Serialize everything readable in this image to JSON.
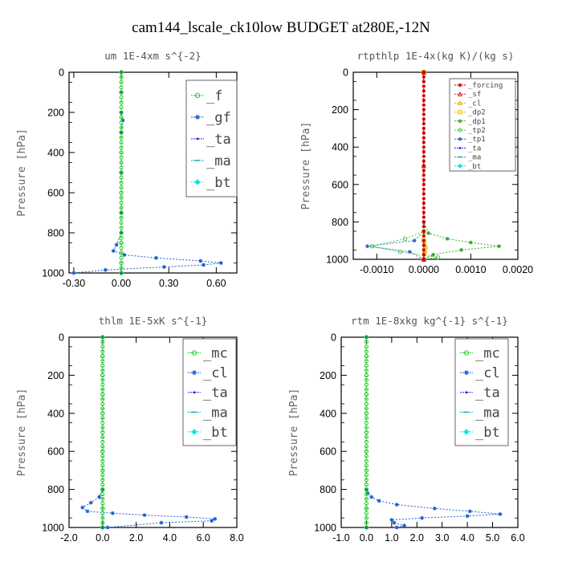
{
  "figure_title": "cam144_lscale_ck10low  BUDGET at280E,-12N",
  "chart_data": [
    {
      "type": "line",
      "title": "um   1E-4xm s^{-2}",
      "ylabel": "Pressure [hPa]",
      "xlim": [
        -0.33,
        0.73
      ],
      "ylim": [
        1000,
        0
      ],
      "xticks": [
        "-0.30",
        "0.00",
        "0.30",
        "0.60"
      ],
      "xtick_values": [
        -0.3,
        0.0,
        0.3,
        0.6
      ],
      "yticks": [
        "0",
        "200",
        "400",
        "600",
        "800",
        "1000"
      ],
      "legend_position": "top-right",
      "legend_size": "large",
      "series": [
        {
          "name": "_f",
          "color": "#22cc22",
          "marker": "circle",
          "points": [
            [
              0.0,
              0
            ],
            [
              0.0,
              100
            ],
            [
              0.0,
              200
            ],
            [
              0.0,
              300
            ],
            [
              0.0,
              400
            ],
            [
              0.0,
              500
            ],
            [
              0.0,
              600
            ],
            [
              0.0,
              700
            ],
            [
              0.0,
              800
            ],
            [
              0.0,
              850
            ],
            [
              0.0,
              900
            ],
            [
              0.0,
              950
            ],
            [
              0.0,
              1000
            ]
          ]
        },
        {
          "name": "_gf",
          "color": "#1a5fd0",
          "marker": "star",
          "points": [
            [
              0.0,
              0
            ],
            [
              0.0,
              100
            ],
            [
              0.0,
              200
            ],
            [
              0.01,
              240
            ],
            [
              0.0,
              300
            ],
            [
              0.0,
              500
            ],
            [
              0.0,
              700
            ],
            [
              0.0,
              800
            ],
            [
              -0.03,
              860
            ],
            [
              -0.05,
              890
            ],
            [
              0.02,
              910
            ],
            [
              0.22,
              925
            ],
            [
              0.5,
              940
            ],
            [
              0.63,
              950
            ],
            [
              0.52,
              960
            ],
            [
              0.27,
              970
            ],
            [
              -0.1,
              985
            ],
            [
              -0.3,
              1000
            ]
          ]
        },
        {
          "name": "_ta",
          "color": "#2222dd",
          "marker": "dot",
          "points": [
            [
              0.0,
              0
            ],
            [
              0.0,
              500
            ],
            [
              0.0,
              1000
            ]
          ]
        },
        {
          "name": "_ma",
          "color": "#00aaaa",
          "marker": "dash",
          "points": [
            [
              0.0,
              0
            ],
            [
              0.0,
              500
            ],
            [
              0.0,
              1000
            ]
          ]
        },
        {
          "name": "_bt",
          "color": "#00e6e6",
          "marker": "diamond",
          "points": [
            [
              0.0,
              0
            ],
            [
              0.0,
              500
            ],
            [
              0.0,
              1000
            ]
          ]
        }
      ]
    },
    {
      "type": "line",
      "title": "rtpthlp   1E-4x(kg K)/(kg s)",
      "ylabel": "Pressure [hPa]",
      "xlim": [
        -0.0015,
        0.002
      ],
      "ylim": [
        1000,
        0
      ],
      "xticks": [
        "-0.0010",
        "0.0000",
        "0.0010",
        "0.0020"
      ],
      "xtick_values": [
        -0.001,
        0.0,
        0.001,
        0.002
      ],
      "yticks": [
        "0",
        "200",
        "400",
        "600",
        "800",
        "1000"
      ],
      "legend_position": "top-right",
      "legend_size": "small",
      "series": [
        {
          "name": "_forcing",
          "color": "#cc0000",
          "marker": "star",
          "points": [
            [
              0.0,
              0
            ],
            [
              0.0,
              500
            ],
            [
              0.0,
              1000
            ]
          ]
        },
        {
          "name": "_sf",
          "color": "#dd2222",
          "marker": "tri",
          "points": [
            [
              0.0,
              0
            ],
            [
              0.0,
              500
            ],
            [
              0.0,
              1000
            ]
          ]
        },
        {
          "name": "_cl",
          "color": "#e0b000",
          "marker": "tri",
          "points": [
            [
              0.0,
              0
            ],
            [
              0.0,
              850
            ],
            [
              4e-05,
              930
            ],
            [
              2e-05,
              960
            ],
            [
              0.0,
              1000
            ]
          ]
        },
        {
          "name": "_dp2",
          "color": "#f0c000",
          "marker": "square",
          "points": [
            [
              0.0,
              0
            ],
            [
              0.0,
              900
            ],
            [
              2e-05,
              950
            ],
            [
              0.0,
              1000
            ]
          ]
        },
        {
          "name": "_dp1",
          "color": "#33aa33",
          "marker": "star",
          "points": [
            [
              0.0,
              0
            ],
            [
              0.0,
              800
            ],
            [
              0.0001,
              860
            ],
            [
              0.0005,
              890
            ],
            [
              0.001,
              910
            ],
            [
              0.0016,
              930
            ],
            [
              0.0008,
              950
            ],
            [
              0.0002,
              975
            ],
            [
              0.0,
              1000
            ]
          ]
        },
        {
          "name": "_tp2",
          "color": "#44cc44",
          "marker": "circle",
          "points": [
            [
              0.0,
              0
            ],
            [
              0.0,
              850
            ],
            [
              -0.0004,
              890
            ],
            [
              -0.0011,
              930
            ],
            [
              -0.0005,
              960
            ],
            [
              0.0003,
              990
            ],
            [
              0.0,
              1000
            ]
          ]
        },
        {
          "name": "_tp1",
          "color": "#3366cc",
          "marker": "star",
          "points": [
            [
              0.0,
              0
            ],
            [
              0.0,
              850
            ],
            [
              -0.0002,
              900
            ],
            [
              -0.0012,
              930
            ],
            [
              -0.0003,
              960
            ],
            [
              0.0,
              1000
            ]
          ]
        },
        {
          "name": "_ta",
          "color": "#2222dd",
          "marker": "dot",
          "points": [
            [
              0.0,
              0
            ],
            [
              0.0,
              1000
            ]
          ]
        },
        {
          "name": "_ma",
          "color": "#00aaaa",
          "marker": "dash",
          "points": [
            [
              0.0,
              0
            ],
            [
              0.0,
              1000
            ]
          ]
        },
        {
          "name": "_bt",
          "color": "#00e6e6",
          "marker": "diamond",
          "points": [
            [
              0.0,
              0
            ],
            [
              0.0,
              1000
            ]
          ]
        }
      ]
    },
    {
      "type": "line",
      "title": "thlm   1E-5xK s^{-1}",
      "ylabel": "Pressure [hPa]",
      "xlim": [
        -2.0,
        8.0
      ],
      "ylim": [
        1000,
        0
      ],
      "xticks": [
        "-2.0",
        "0.0",
        "2.0",
        "4.0",
        "6.0",
        "8.0"
      ],
      "xtick_values": [
        -2,
        0,
        2,
        4,
        6,
        8
      ],
      "yticks": [
        "0",
        "200",
        "400",
        "600",
        "800",
        "1000"
      ],
      "legend_position": "top-right",
      "legend_size": "large",
      "series": [
        {
          "name": "_mc",
          "color": "#22cc22",
          "marker": "circle",
          "points": [
            [
              0.0,
              0
            ],
            [
              0.0,
              100
            ],
            [
              0.0,
              200
            ],
            [
              0.0,
              300
            ],
            [
              0.0,
              400
            ],
            [
              0.0,
              500
            ],
            [
              0.0,
              600
            ],
            [
              0.0,
              700
            ],
            [
              0.0,
              800
            ],
            [
              0.0,
              900
            ],
            [
              0.0,
              1000
            ]
          ]
        },
        {
          "name": "_cl",
          "color": "#1a5fd0",
          "marker": "star",
          "points": [
            [
              0.0,
              0
            ],
            [
              0.0,
              800
            ],
            [
              -0.2,
              840
            ],
            [
              -0.7,
              870
            ],
            [
              -1.2,
              895
            ],
            [
              -0.9,
              915
            ],
            [
              0.6,
              925
            ],
            [
              2.5,
              935
            ],
            [
              5.0,
              945
            ],
            [
              6.7,
              955
            ],
            [
              6.5,
              965
            ],
            [
              3.5,
              975
            ],
            [
              0.3,
              1000
            ]
          ]
        },
        {
          "name": "_ta",
          "color": "#2222dd",
          "marker": "dot",
          "points": [
            [
              0.0,
              0
            ],
            [
              0.0,
              1000
            ]
          ]
        },
        {
          "name": "_ma",
          "color": "#00aaaa",
          "marker": "dash",
          "points": [
            [
              0.0,
              0
            ],
            [
              0.0,
              1000
            ]
          ]
        },
        {
          "name": "_bt",
          "color": "#00e6e6",
          "marker": "diamond",
          "points": [
            [
              0.0,
              0
            ],
            [
              0.0,
              1000
            ]
          ]
        }
      ]
    },
    {
      "type": "line",
      "title": "rtm   1E-8xkg kg^{-1} s^{-1}",
      "ylabel": "Pressure [hPa]",
      "xlim": [
        -1.0,
        6.0
      ],
      "ylim": [
        1000,
        0
      ],
      "xticks": [
        "-1.0",
        "0.0",
        "1.0",
        "2.0",
        "3.0",
        "4.0",
        "5.0",
        "6.0"
      ],
      "xtick_values": [
        -1,
        0,
        1,
        2,
        3,
        4,
        5,
        6
      ],
      "yticks": [
        "0",
        "200",
        "400",
        "600",
        "800",
        "1000"
      ],
      "legend_position": "top-right",
      "legend_size": "large",
      "series": [
        {
          "name": "_mc",
          "color": "#22cc22",
          "marker": "circle",
          "points": [
            [
              0.0,
              0
            ],
            [
              0.0,
              100
            ],
            [
              0.0,
              200
            ],
            [
              0.0,
              300
            ],
            [
              0.0,
              400
            ],
            [
              0.0,
              500
            ],
            [
              0.0,
              600
            ],
            [
              0.0,
              700
            ],
            [
              0.0,
              800
            ],
            [
              0.0,
              900
            ],
            [
              0.0,
              1000
            ]
          ]
        },
        {
          "name": "_cl",
          "color": "#1a5fd0",
          "marker": "star",
          "points": [
            [
              0.0,
              0
            ],
            [
              0.0,
              800
            ],
            [
              0.05,
              820
            ],
            [
              0.2,
              840
            ],
            [
              0.5,
              860
            ],
            [
              1.2,
              880
            ],
            [
              2.7,
              900
            ],
            [
              4.1,
              915
            ],
            [
              5.3,
              930
            ],
            [
              4.0,
              940
            ],
            [
              2.2,
              950
            ],
            [
              1.0,
              960
            ],
            [
              1.1,
              975
            ],
            [
              1.5,
              990
            ],
            [
              1.2,
              1000
            ]
          ]
        },
        {
          "name": "_ta",
          "color": "#2222dd",
          "marker": "dot",
          "points": [
            [
              0.0,
              0
            ],
            [
              0.0,
              1000
            ]
          ]
        },
        {
          "name": "_ma",
          "color": "#00aaaa",
          "marker": "dash",
          "points": [
            [
              0.0,
              0
            ],
            [
              0.0,
              1000
            ]
          ]
        },
        {
          "name": "_bt",
          "color": "#00e6e6",
          "marker": "diamond",
          "points": [
            [
              0.0,
              0
            ],
            [
              0.0,
              1000
            ]
          ]
        }
      ]
    }
  ]
}
